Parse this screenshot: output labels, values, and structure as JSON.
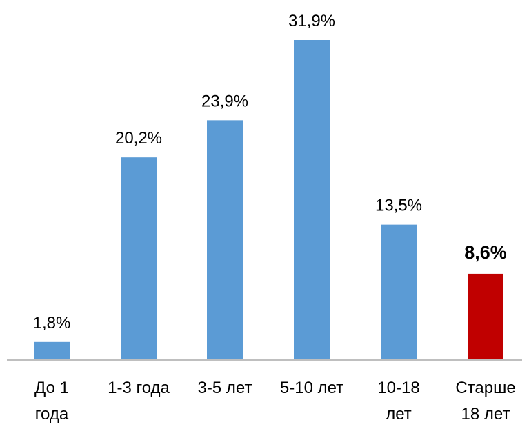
{
  "chart_data": {
    "type": "bar",
    "title": "",
    "xlabel": "",
    "ylabel": "",
    "ylim": [
      0,
      31.9
    ],
    "grid": false,
    "legend": "none",
    "categories": [
      [
        "До 1",
        "года"
      ],
      [
        "1-3 года"
      ],
      [
        "3-5 лет"
      ],
      [
        "5-10 лет"
      ],
      [
        "10-18",
        "лет"
      ],
      [
        "Старше",
        "18 лет"
      ]
    ],
    "values": [
      1.8,
      20.2,
      23.9,
      31.9,
      13.5,
      8.6
    ],
    "data_labels": [
      "1,8%",
      "20,2%",
      "23,9%",
      "31,9%",
      "13,5%",
      "8,6%"
    ],
    "colors": {
      "default": "#5B9BD5",
      "highlight": "#C00000",
      "axis": "#BFBFBF"
    },
    "highlight_index": 5
  }
}
